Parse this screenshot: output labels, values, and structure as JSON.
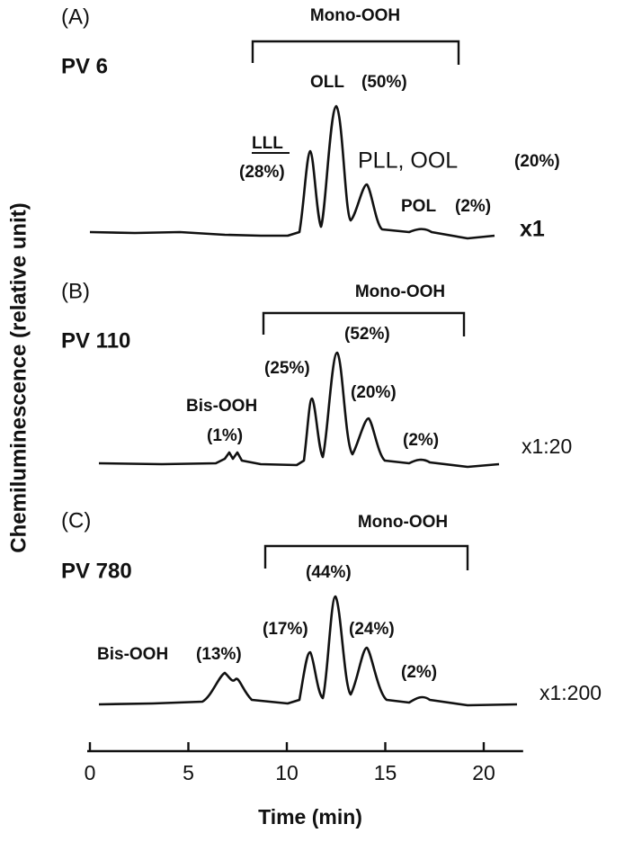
{
  "chart_data": {
    "type": "chromatogram",
    "xlabel": "Time (min)",
    "ylabel": "Chemiluminescence (relative unit)",
    "xlim": [
      0,
      22
    ],
    "xticks": [
      0,
      5,
      10,
      15,
      20
    ],
    "panels": [
      {
        "panel": "(A)",
        "sample": "PV 6",
        "bracket_label": "Mono-OOH",
        "scale": "x1",
        "annotations": [
          "OLL",
          "(50%)",
          "LLL",
          "(28%)",
          "PLL, OOL",
          "(20%)",
          "POL",
          "(2%)"
        ]
      },
      {
        "panel": "(B)",
        "sample": "PV 110",
        "bracket_label": "Mono-OOH",
        "scale": "x1:20",
        "annotations": [
          "(52%)",
          "(25%)",
          "(20%)",
          "(2%)",
          "Bis-OOH",
          "(1%)"
        ]
      },
      {
        "panel": "(C)",
        "sample": "PV 780",
        "bracket_label": "Mono-OOH",
        "scale": "x1:200",
        "annotations": [
          "(44%)",
          "(17%)",
          "(24%)",
          "(2%)",
          "Bis-OOH",
          "(13%)"
        ]
      }
    ]
  }
}
